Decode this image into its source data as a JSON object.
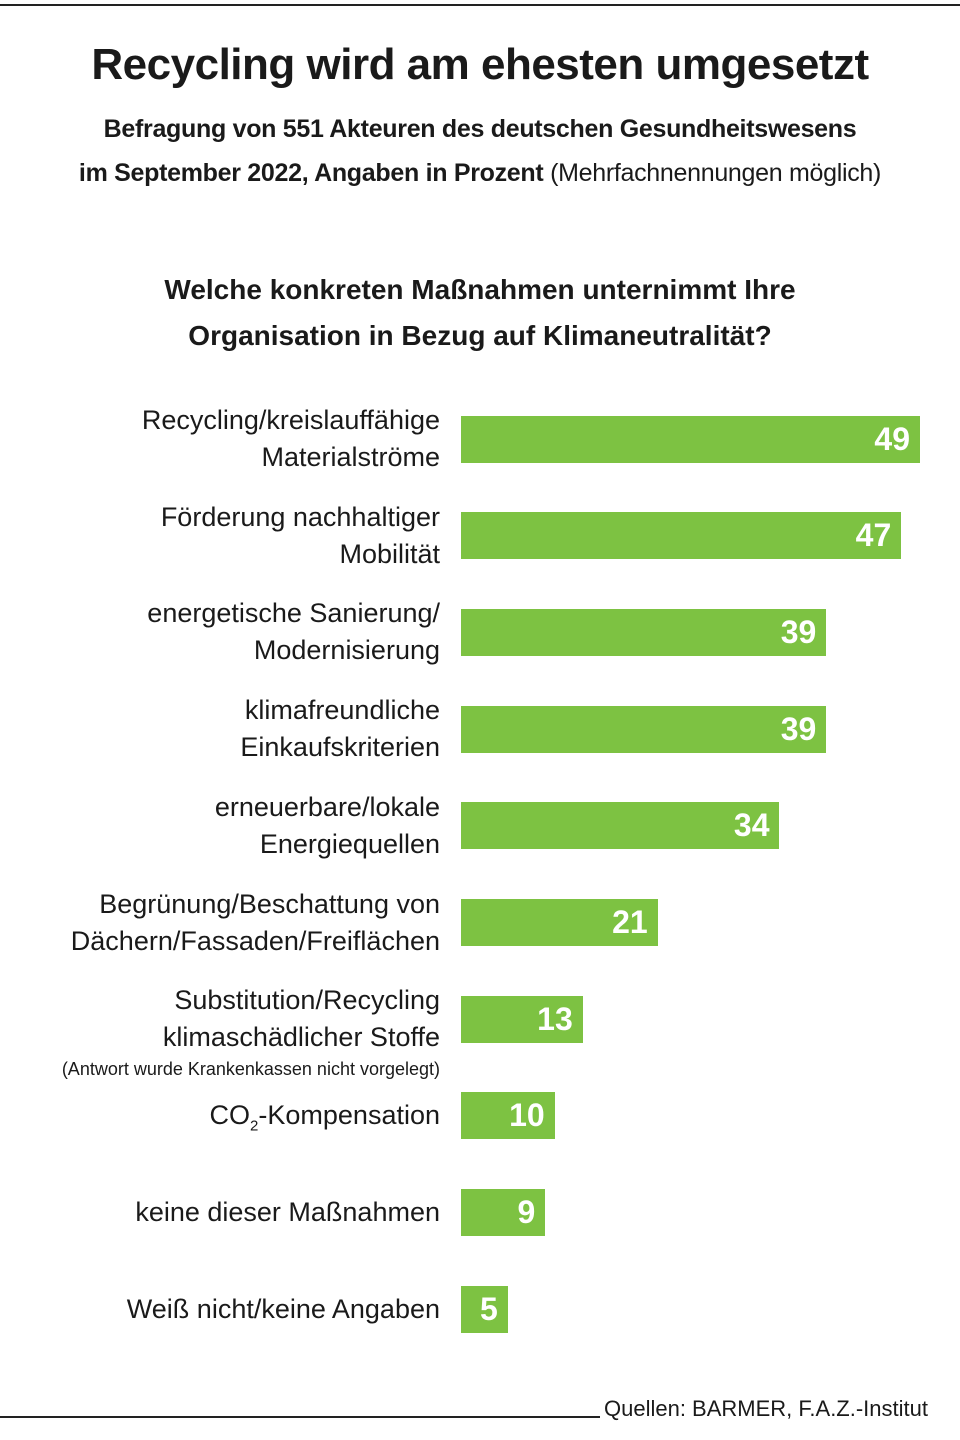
{
  "header": {
    "title": "Recycling wird am ehesten umgesetzt",
    "subtitle_line1": "Befragung von 551 Akteuren des deutschen Gesundheitswesens",
    "subtitle_line2_bold": "im September 2022, Angaben in Prozent",
    "subtitle_line2_regular": "(Mehrfachnennungen möglich)"
  },
  "chart_data": {
    "type": "bar",
    "orientation": "horizontal",
    "title_line1": "Welche konkreten Maßnahmen unternimmt Ihre",
    "title_line2": "Organisation in Bezug auf  Klimaneutralität?",
    "bar_color": "#7dc242",
    "xlim": [
      0,
      49
    ],
    "categories": [
      {
        "line1": "Recycling/kreislauffähige",
        "line2": "Materialströme"
      },
      {
        "line1": "Förderung nachhaltiger",
        "line2": "Mobilität"
      },
      {
        "line1": "energetische Sanierung/",
        "line2": "Modernisierung"
      },
      {
        "line1": "klimafreundliche",
        "line2": "Einkaufskriterien"
      },
      {
        "line1": "erneuerbare/lokale",
        "line2": "Energiequellen"
      },
      {
        "line1": "Begrünung/Beschattung von",
        "line2": "Dächern/Fassaden/Freiflächen"
      },
      {
        "line1": "Substitution/Recycling",
        "line2": "klimaschädlicher Stoffe",
        "note": "(Antwort wurde Krankenkassen nicht vorgelegt)"
      },
      {
        "line1": "CO",
        "sub": "2",
        "line1_rest": "-Kompensation"
      },
      {
        "line1": "keine dieser Maßnahmen"
      },
      {
        "line1": "Weiß nicht/keine Angaben"
      }
    ],
    "values": [
      49,
      47,
      39,
      39,
      34,
      21,
      13,
      10,
      9,
      5
    ]
  },
  "footer": {
    "source": "Quellen: BARMER, F.A.Z.-Institut"
  }
}
